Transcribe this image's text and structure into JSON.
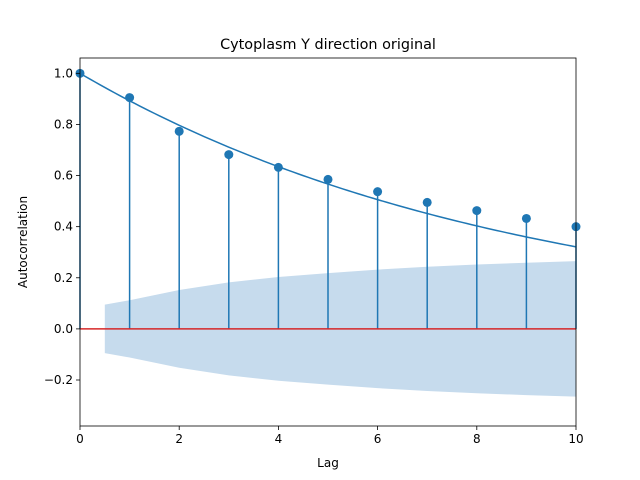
{
  "chart_data": {
    "type": "stem",
    "title": "Cytoplasm Y direction original",
    "xlabel": "Lag",
    "ylabel": "Autocorrelation",
    "xlim": [
      0,
      10
    ],
    "ylim": [
      -0.38,
      1.06
    ],
    "xticks": [
      0,
      2,
      4,
      6,
      8,
      10
    ],
    "yticks": [
      -0.2,
      0.0,
      0.2,
      0.4,
      0.6,
      0.8,
      1.0
    ],
    "ytick_labels": [
      "−0.2",
      "0.0",
      "0.2",
      "0.4",
      "0.6",
      "0.8",
      "1.0"
    ],
    "grid": false,
    "series": [
      {
        "kind": "stem",
        "x": [
          0,
          1,
          2,
          3,
          4,
          5,
          6,
          7,
          8,
          9,
          10
        ],
        "values": [
          1.0,
          0.905,
          0.773,
          0.682,
          0.632,
          0.585,
          0.537,
          0.495,
          0.463,
          0.432,
          0.4
        ],
        "color": "#1f77b4"
      },
      {
        "kind": "line",
        "model": "exponential",
        "decay_rate": 0.1136,
        "color": "#1f77b4"
      },
      {
        "kind": "confidence_band",
        "x": [
          0.5,
          1,
          2,
          3,
          4,
          5,
          6,
          7,
          8,
          9,
          10
        ],
        "upper": [
          0.095,
          0.112,
          0.152,
          0.182,
          0.203,
          0.218,
          0.232,
          0.243,
          0.252,
          0.259,
          0.265
        ],
        "lower": [
          -0.095,
          -0.112,
          -0.152,
          -0.182,
          -0.203,
          -0.218,
          -0.232,
          -0.243,
          -0.252,
          -0.259,
          -0.265
        ],
        "color": "#c6dbed"
      }
    ],
    "baseline": {
      "y": 0,
      "color": "#d62728"
    }
  }
}
